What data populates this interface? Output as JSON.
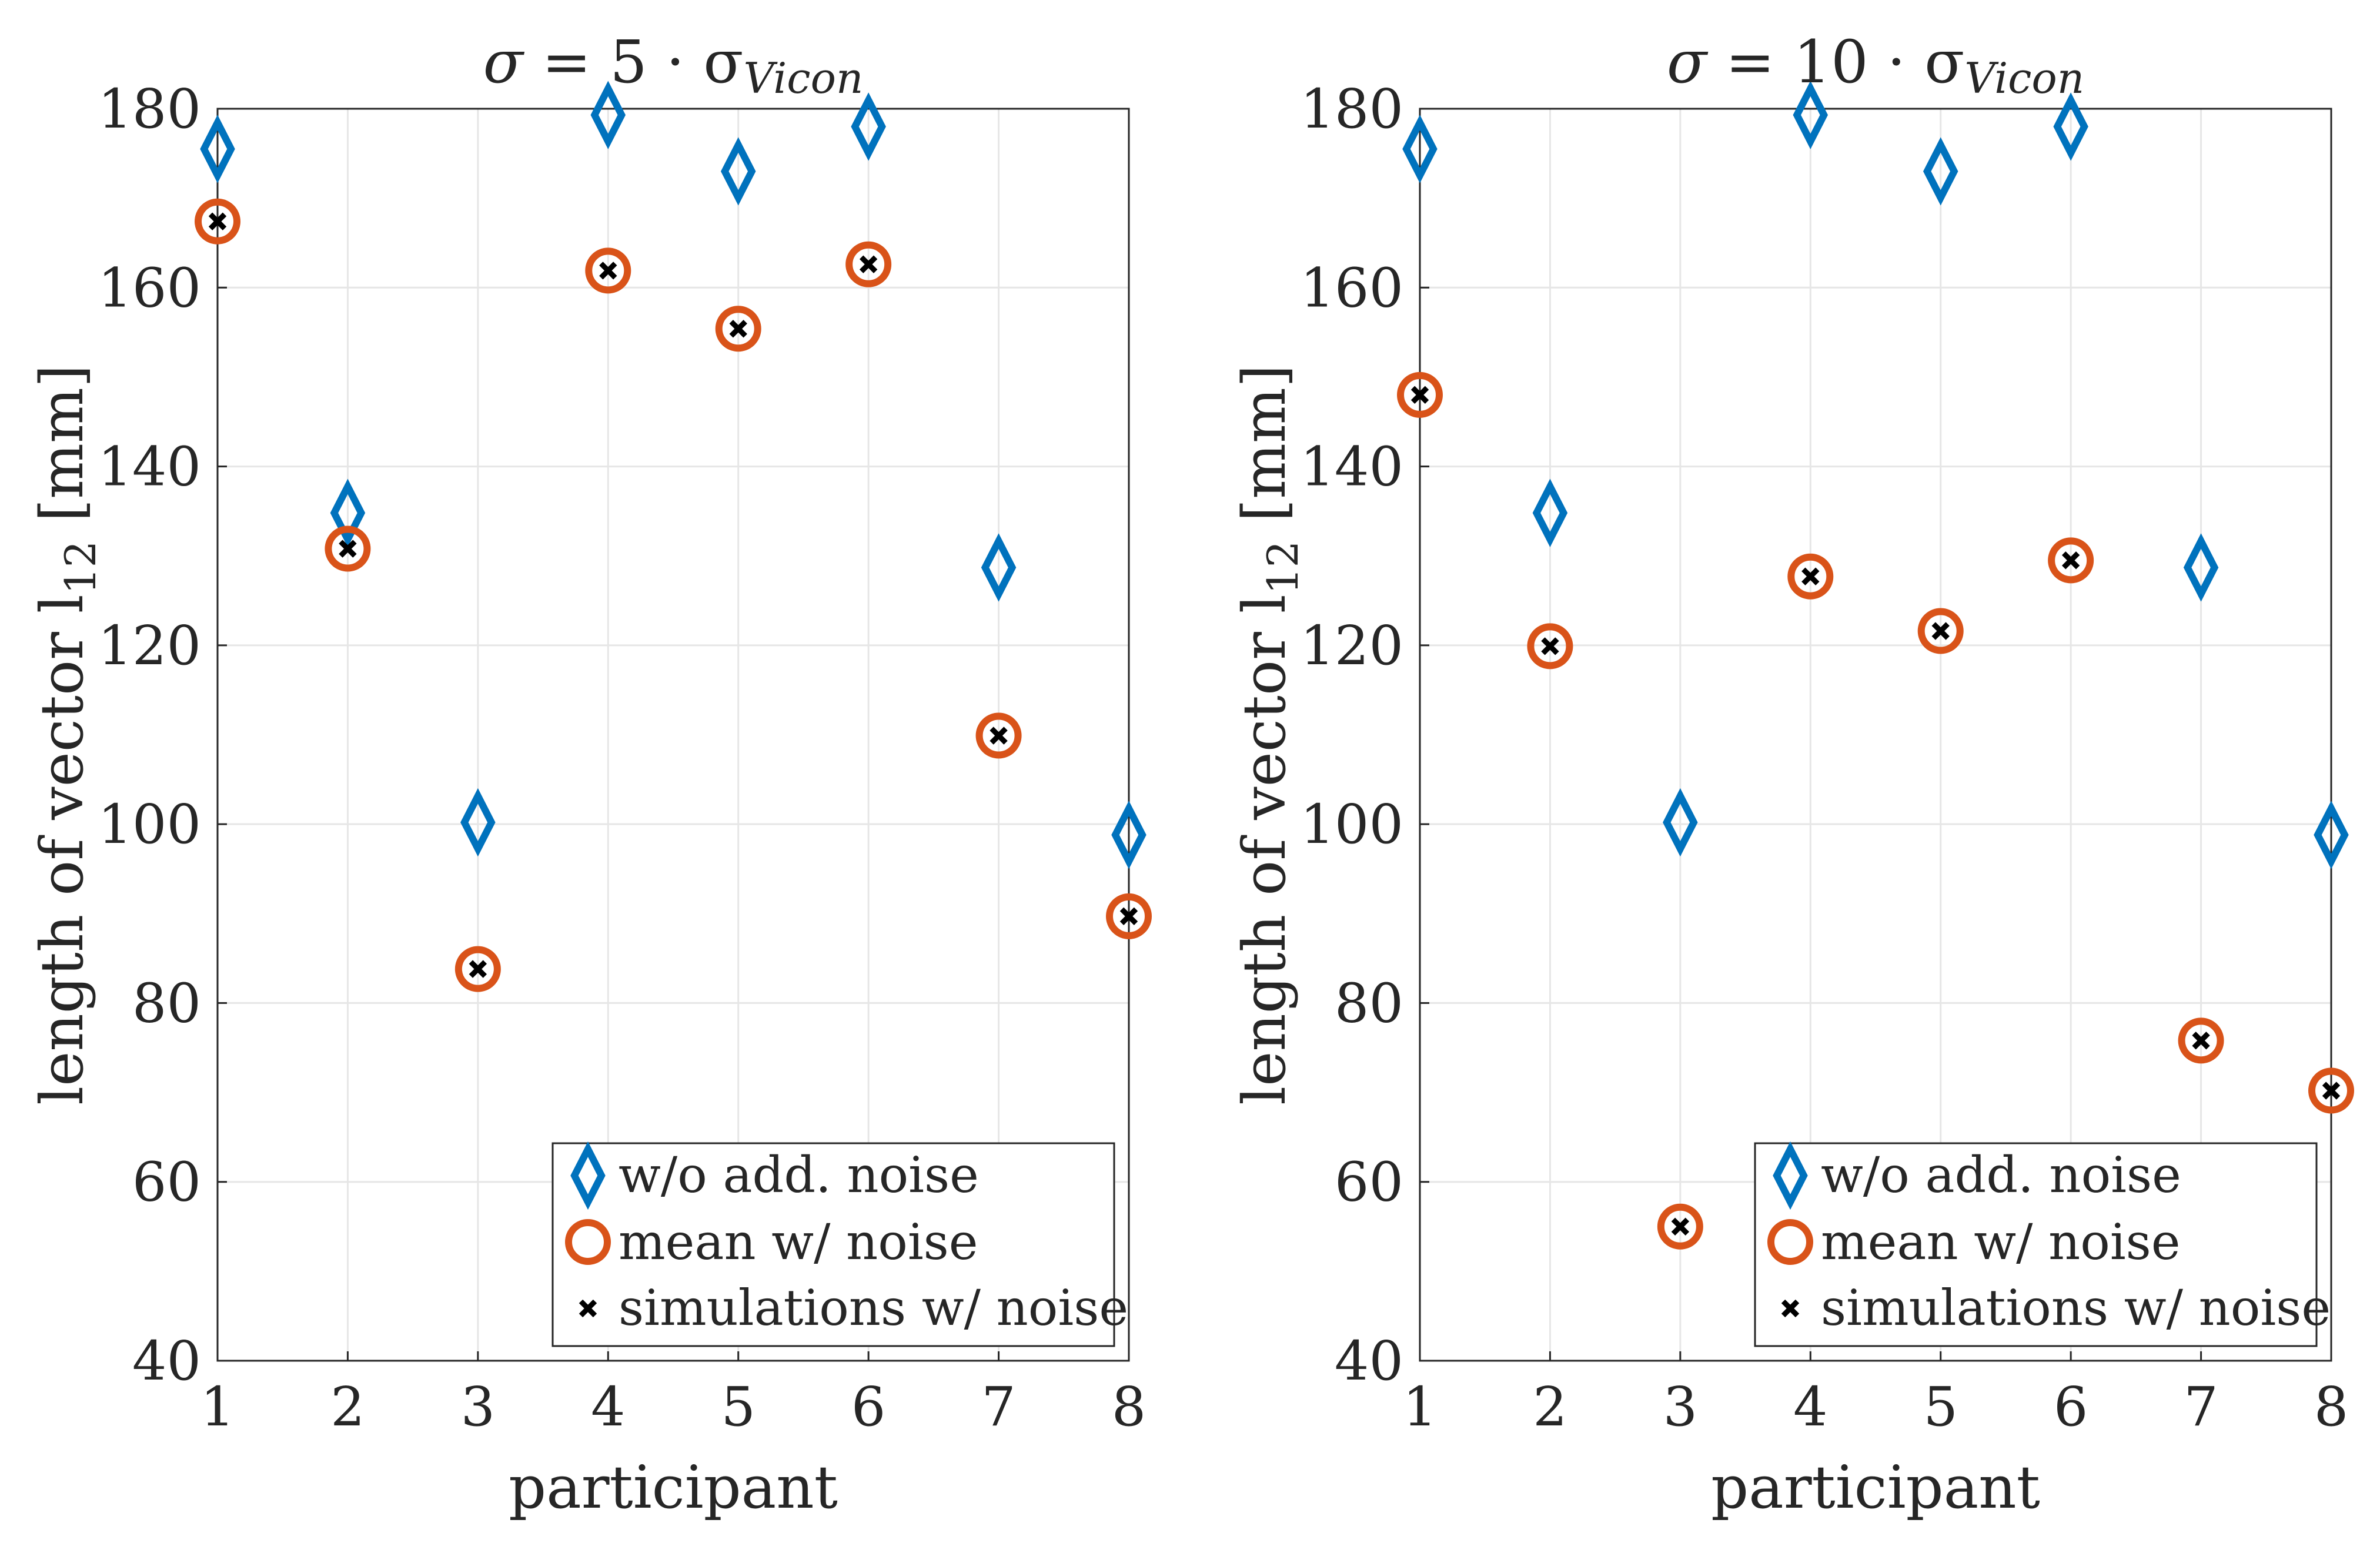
{
  "chart_data": [
    {
      "type": "scatter",
      "title": "σ = 5 · σ_Vicon",
      "title_parts": {
        "lhs": "σ",
        "eq": " = 5 · σ",
        "sub": "Vicon"
      },
      "xlabel": "participant",
      "ylabel": "length of vector l₁₂ [mm]",
      "ylabel_parts": {
        "pre": "length of vector l",
        "sub": "12",
        "post": " [mm]"
      },
      "xlim": [
        1,
        8
      ],
      "ylim": [
        40,
        180
      ],
      "xticks": [
        1,
        2,
        3,
        4,
        5,
        6,
        7,
        8
      ],
      "yticks": [
        40,
        60,
        80,
        100,
        120,
        140,
        160,
        180
      ],
      "grid": true,
      "legend_position": "bottom-right",
      "series": [
        {
          "name": "w/o add. noise",
          "marker": "diamond",
          "color": "#0072BD",
          "x": [
            1,
            2,
            3,
            4,
            5,
            6,
            7,
            8
          ],
          "y": [
            175.5,
            134.8,
            100.2,
            179.3,
            173.0,
            178.0,
            128.7,
            98.8
          ]
        },
        {
          "name": "mean w/ noise",
          "marker": "circle",
          "color": "#D95319",
          "x": [
            1,
            2,
            3,
            4,
            5,
            6,
            7,
            8
          ],
          "y": [
            167.4,
            130.8,
            83.8,
            161.9,
            155.4,
            162.6,
            109.9,
            89.7
          ]
        },
        {
          "name": "simulations w/ noise",
          "marker": "x",
          "color": "#000000",
          "x": [
            1,
            2,
            3,
            4,
            5,
            6,
            7,
            8
          ],
          "y": [
            167.4,
            130.8,
            83.8,
            161.9,
            155.4,
            162.6,
            109.9,
            89.7
          ]
        }
      ]
    },
    {
      "type": "scatter",
      "title": "σ = 10 · σ_Vicon",
      "title_parts": {
        "lhs": "σ",
        "eq": " = 10 · σ",
        "sub": "Vicon"
      },
      "xlabel": "participant",
      "ylabel": "length of vector l₁₂ [mm]",
      "ylabel_parts": {
        "pre": "length of vector l",
        "sub": "12",
        "post": " [mm]"
      },
      "xlim": [
        1,
        8
      ],
      "ylim": [
        40,
        180
      ],
      "xticks": [
        1,
        2,
        3,
        4,
        5,
        6,
        7,
        8
      ],
      "yticks": [
        40,
        60,
        80,
        100,
        120,
        140,
        160,
        180
      ],
      "grid": true,
      "legend_position": "bottom-right",
      "series": [
        {
          "name": "w/o add. noise",
          "marker": "diamond",
          "color": "#0072BD",
          "x": [
            1,
            2,
            3,
            4,
            5,
            6,
            7,
            8
          ],
          "y": [
            175.5,
            134.8,
            100.2,
            179.3,
            173.0,
            178.0,
            128.7,
            98.8
          ]
        },
        {
          "name": "mean w/ noise",
          "marker": "circle",
          "color": "#D95319",
          "x": [
            1,
            2,
            3,
            4,
            5,
            6,
            7,
            8
          ],
          "y": [
            148.0,
            119.9,
            55.0,
            127.7,
            121.6,
            129.5,
            75.8,
            70.2
          ]
        },
        {
          "name": "simulations w/ noise",
          "marker": "x",
          "color": "#000000",
          "x": [
            1,
            2,
            3,
            4,
            5,
            6,
            7,
            8
          ],
          "y": [
            148.0,
            119.9,
            55.0,
            127.7,
            121.6,
            129.5,
            75.8,
            70.2
          ]
        }
      ]
    }
  ]
}
